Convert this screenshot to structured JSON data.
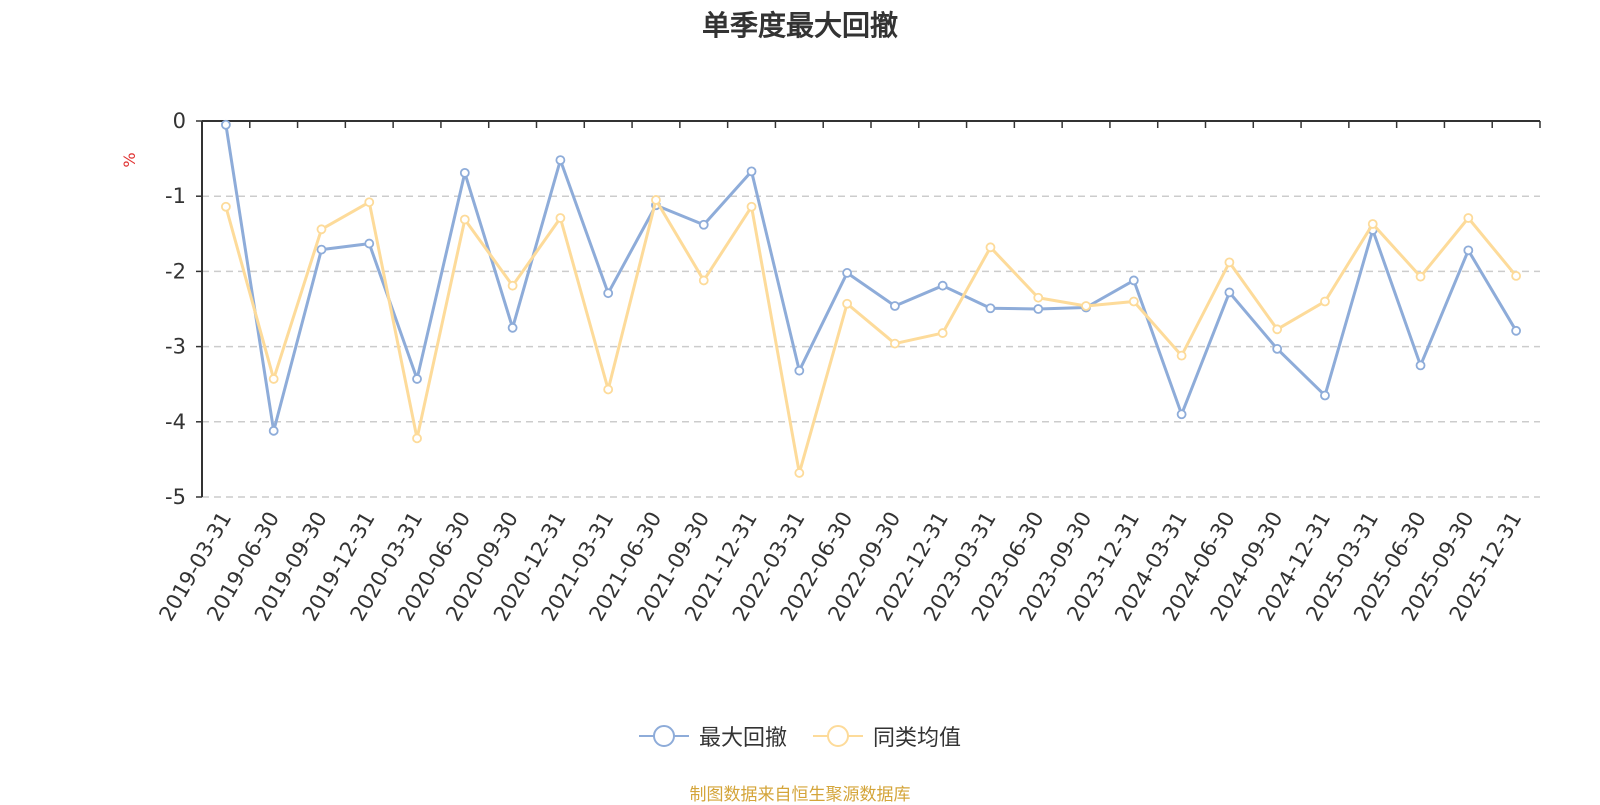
{
  "chart_data": {
    "type": "line",
    "title": "单季度最大回撤",
    "ylabel": "%",
    "ylim": [
      -5,
      0
    ],
    "yticks": [
      0,
      -1,
      -2,
      -3,
      -4,
      -5
    ],
    "grid": true,
    "legend_position": "bottom-center",
    "categories": [
      "2019-03-31",
      "2019-06-30",
      "2019-09-30",
      "2019-12-31",
      "2020-03-31",
      "2020-06-30",
      "2020-09-30",
      "2020-12-31",
      "2021-03-31",
      "2021-06-30",
      "2021-09-30",
      "2021-12-31",
      "2022-03-31",
      "2022-06-30",
      "2022-09-30",
      "2022-12-31",
      "2023-03-31",
      "2023-06-30",
      "2023-09-30",
      "2023-12-31",
      "2024-03-31",
      "2024-06-30",
      "2024-09-30",
      "2024-12-31",
      "2025-03-31",
      "2025-06-30",
      "2025-09-30",
      "2025-12-31"
    ],
    "series": [
      {
        "name": "最大回撤",
        "color": "#8eacd9",
        "values": [
          -0.05,
          -4.12,
          -1.71,
          -1.63,
          -3.43,
          -0.69,
          -2.75,
          -0.52,
          -2.29,
          -1.12,
          -1.38,
          -0.67,
          -3.32,
          -2.02,
          -2.46,
          -2.19,
          -2.49,
          -2.5,
          -2.48,
          -2.12,
          -3.9,
          -2.28,
          -3.03,
          -3.65,
          -1.45,
          -3.25,
          -1.72,
          -2.79
        ]
      },
      {
        "name": "同类均值",
        "color": "#fddb9a",
        "values": [
          -1.14,
          -3.43,
          -1.44,
          -1.08,
          -4.22,
          -1.31,
          -2.19,
          -1.29,
          -3.57,
          -1.05,
          -2.12,
          -1.14,
          -4.68,
          -2.43,
          -2.96,
          -2.82,
          -1.68,
          -2.35,
          -2.46,
          -2.4,
          -3.12,
          -1.88,
          -2.77,
          -2.4,
          -1.37,
          -2.07,
          -1.29,
          -2.06
        ]
      }
    ]
  },
  "legend": {
    "items": [
      "最大回撤",
      "同类均值"
    ]
  },
  "source_note": {
    "text": "制图数据来自恒生聚源数据库",
    "color": "#d4a53a"
  },
  "colors": {
    "axis": "#333333",
    "grid": "#cccccc",
    "unit": "#e03030"
  }
}
